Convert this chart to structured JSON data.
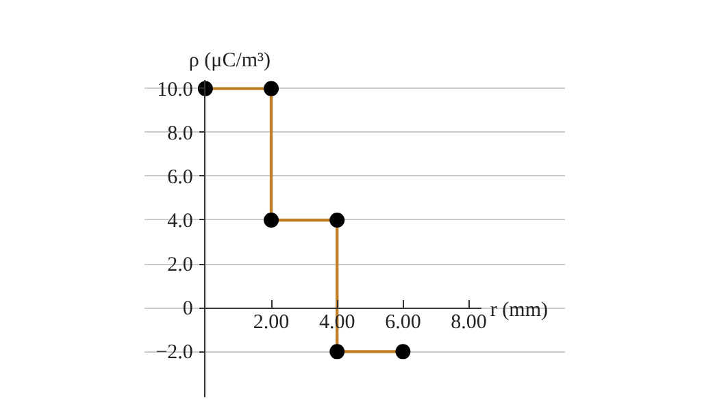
{
  "chart_data": {
    "type": "line",
    "xlabel": "r (mm)",
    "ylabel": "ρ (μC/m³)",
    "x": [
      0,
      2,
      2,
      4,
      4,
      6
    ],
    "series": [
      {
        "color": "#c0802a",
        "marker": "none",
        "line_style": "solid",
        "values": [
          10,
          10,
          4,
          4,
          -2,
          -2
        ]
      },
      {
        "type": "scatter",
        "color": "#000000",
        "marker": "circle",
        "values": [
          10,
          10,
          4,
          4,
          -2,
          -2
        ]
      }
    ],
    "xlim": [
      0,
      8.4
    ],
    "ylim": [
      -4.1,
      10.4
    ],
    "xticks": [
      {
        "value": 2,
        "label": "2.00"
      },
      {
        "value": 4,
        "label": "4.00"
      },
      {
        "value": 6,
        "label": "6.00"
      },
      {
        "value": 8,
        "label": "8.00"
      }
    ],
    "yticks": [
      {
        "value": -2,
        "label": "−2.0"
      },
      0,
      {
        "value": 2,
        "label": "2.0"
      },
      {
        "value": 4,
        "label": "4.0"
      },
      {
        "value": 6,
        "label": "6.0"
      },
      {
        "value": 8,
        "label": "8.0"
      },
      {
        "value": 10,
        "label": "10.0"
      }
    ],
    "grid": "y"
  }
}
